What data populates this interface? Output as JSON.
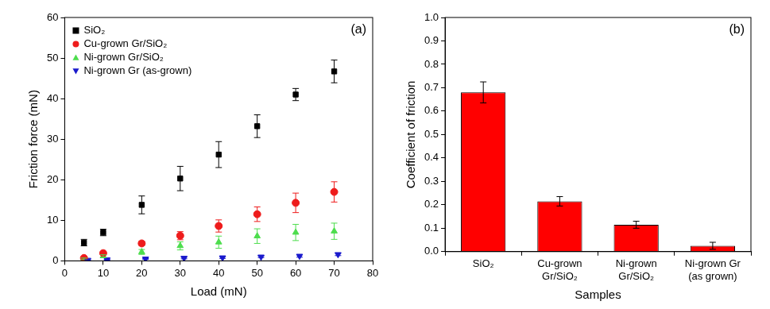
{
  "chart_data": [
    {
      "type": "scatter",
      "annotation": "(a)",
      "x_label": "Load (mN)",
      "y_label": "Friction force (mN)",
      "xlim": [
        0,
        80
      ],
      "xticks": [
        0,
        10,
        20,
        30,
        40,
        50,
        60,
        70,
        80
      ],
      "ylim": [
        0,
        60
      ],
      "yticks": [
        0,
        10,
        20,
        30,
        40,
        50,
        60
      ],
      "grid": false,
      "legend": "upper left",
      "series": [
        {
          "name": "SiO₂",
          "color": "#000000",
          "marker": "square",
          "x": [
            5,
            10,
            20,
            30,
            40,
            50,
            60,
            70
          ],
          "values": [
            4.5,
            7.0,
            13.8,
            20.3,
            26.2,
            33.2,
            41.0,
            46.7
          ],
          "errors": [
            0.8,
            0.8,
            2.2,
            3.0,
            3.2,
            2.8,
            1.5,
            2.8
          ]
        },
        {
          "name": "Cu-grown Gr/SiO₂",
          "color": "#ee1c1c",
          "marker": "circle",
          "x": [
            5,
            10,
            20,
            30,
            40,
            50,
            60,
            70
          ],
          "values": [
            0.7,
            1.9,
            4.3,
            6.2,
            8.6,
            11.5,
            14.3,
            17.0
          ],
          "errors": [
            0.3,
            0.3,
            0.5,
            1.0,
            1.5,
            1.8,
            2.4,
            2.5
          ]
        },
        {
          "name": "Ni-grown Gr/SiO₂",
          "color": "#4ddd4d",
          "marker": "triangle",
          "x": [
            5,
            10,
            20,
            30,
            40,
            50,
            60,
            70
          ],
          "values": [
            0.5,
            1.2,
            2.2,
            3.7,
            4.6,
            6.1,
            7.0,
            7.3
          ],
          "errors": [
            0.2,
            0.3,
            0.6,
            1.0,
            1.5,
            1.8,
            2.0,
            2.0
          ]
        },
        {
          "name": "Ni-grown Gr (as-grown)",
          "color": "#1a1acc",
          "marker": "triangle_down",
          "x": [
            6,
            11,
            21,
            31,
            41,
            51,
            61,
            71
          ],
          "values": [
            0.2,
            0.3,
            0.5,
            0.7,
            0.8,
            1.0,
            1.2,
            1.6
          ],
          "errors": [
            0.1,
            0.1,
            0.1,
            0.2,
            0.2,
            0.2,
            0.3,
            0.3
          ]
        }
      ]
    },
    {
      "type": "bar",
      "annotation": "(b)",
      "x_label": "Samples",
      "y_label": "Coefficient of friction",
      "categories": [
        "SiO₂",
        "Cu-grown Gr/SiO₂",
        "Ni-grown Gr/SiO₂",
        "Ni-grown Gr (as grown)"
      ],
      "values": [
        0.68,
        0.215,
        0.115,
        0.025
      ],
      "errors": [
        0.045,
        0.02,
        0.015,
        0.015
      ],
      "color": "#ff0000",
      "ylim": [
        0,
        1
      ],
      "yticks": [
        {
          "value": 0,
          "label": "0.0"
        },
        0.1,
        0.2,
        0.3,
        0.4,
        0.5,
        0.6,
        0.7,
        0.8,
        0.9,
        {
          "value": 1,
          "label": "1.0"
        }
      ],
      "grid": false
    }
  ]
}
